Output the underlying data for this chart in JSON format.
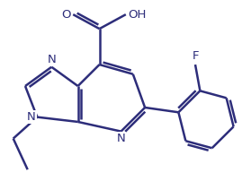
{
  "bg_color": "#ffffff",
  "line_color": "#2d2d7a",
  "line_width": 1.8,
  "figsize": [
    2.69,
    2.12
  ],
  "dpi": 100,
  "xlim": [
    0,
    10
  ],
  "ylim": [
    0,
    7.85
  ]
}
